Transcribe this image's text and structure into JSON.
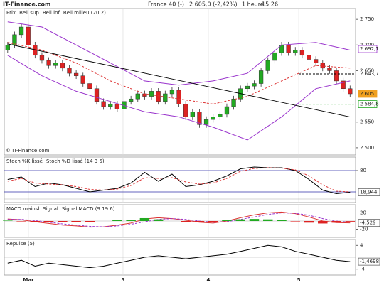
{
  "header": {
    "site": "IT-Finance.com",
    "instrument": "France 40 (-)",
    "quote": "2 605,0 (-2,42%)",
    "period": "1 heure",
    "time": "15:26"
  },
  "chart_data": [
    {
      "type": "candlestick",
      "legend_label": "Prix",
      "copyright": "© IT-Finance.com",
      "xlim": [
        -0.5,
        50.8
      ],
      "xticks": [
        {
          "value": 3.03,
          "label": "Mar"
        },
        {
          "value": 16.84,
          "label": "3"
        },
        {
          "value": 29.3,
          "label": "4"
        },
        {
          "value": 42.5,
          "label": "5"
        }
      ],
      "ylim": [
        2486,
        2771
      ],
      "yticks": [
        {
          "value": 2750,
          "label": "2 750"
        },
        {
          "value": 2700,
          "label": "2 700"
        },
        {
          "value": 2650,
          "label": "2 650"
        },
        {
          "value": 2550,
          "label": "2 550"
        },
        {
          "value": 2500,
          "label": "2 500"
        }
      ],
      "up_color": "#22aa22",
      "down_color": "#dd2222",
      "open": [
        2690,
        2700,
        2720,
        2735,
        2700,
        2680,
        2670,
        2660,
        2665,
        2655,
        2645,
        2640,
        2625,
        2615,
        2590,
        2580,
        2585,
        2575,
        2590,
        2595,
        2605,
        2600,
        2610,
        2590,
        2605,
        2612,
        2585,
        2560,
        2570,
        2545,
        2555,
        2560,
        2565,
        2580,
        2595,
        2615,
        2620,
        2625,
        2650,
        2670,
        2685,
        2700,
        2685,
        2690,
        2680,
        2672,
        2665,
        2655,
        2650,
        2630,
        2615
      ],
      "high": [
        2706,
        2726,
        2741,
        2741,
        2706,
        2686,
        2676,
        2671,
        2671,
        2661,
        2651,
        2646,
        2631,
        2621,
        2596,
        2591,
        2591,
        2596,
        2601,
        2611,
        2611,
        2616,
        2616,
        2611,
        2618,
        2618,
        2591,
        2576,
        2576,
        2561,
        2566,
        2571,
        2586,
        2601,
        2621,
        2626,
        2631,
        2656,
        2676,
        2691,
        2706,
        2706,
        2696,
        2696,
        2686,
        2678,
        2671,
        2661,
        2656,
        2636,
        2621
      ],
      "low": [
        2684,
        2694,
        2714,
        2694,
        2674,
        2664,
        2654,
        2654,
        2649,
        2639,
        2634,
        2619,
        2609,
        2584,
        2574,
        2574,
        2569,
        2569,
        2584,
        2589,
        2594,
        2594,
        2584,
        2584,
        2599,
        2579,
        2554,
        2554,
        2539,
        2539,
        2549,
        2554,
        2559,
        2574,
        2589,
        2609,
        2614,
        2619,
        2644,
        2664,
        2679,
        2679,
        2679,
        2674,
        2666,
        2659,
        2649,
        2644,
        2624,
        2609,
        2599
      ],
      "close": [
        2700,
        2720,
        2735,
        2700,
        2680,
        2670,
        2660,
        2665,
        2655,
        2645,
        2640,
        2625,
        2615,
        2590,
        2580,
        2585,
        2575,
        2590,
        2595,
        2605,
        2600,
        2610,
        2590,
        2605,
        2612,
        2585,
        2560,
        2570,
        2545,
        2555,
        2560,
        2565,
        2580,
        2595,
        2615,
        2620,
        2625,
        2650,
        2670,
        2685,
        2700,
        2685,
        2690,
        2680,
        2672,
        2665,
        2655,
        2650,
        2630,
        2615,
        2605
      ],
      "series": [
        {
          "name": "Bell sup",
          "color": "#9933cc",
          "x": [
            0,
            5,
            10,
            15,
            20,
            25,
            30,
            35,
            40,
            45,
            50
          ],
          "values": [
            2745,
            2735,
            2700,
            2665,
            2630,
            2622,
            2630,
            2645,
            2700,
            2705,
            2690
          ]
        },
        {
          "name": "Bell inf",
          "color": "#9933cc",
          "x": [
            0,
            5,
            10,
            15,
            20,
            25,
            30,
            35,
            40,
            45,
            50
          ],
          "values": [
            2680,
            2640,
            2610,
            2590,
            2570,
            2560,
            2540,
            2515,
            2560,
            2615,
            2630
          ]
        },
        {
          "name": "Bell milieu (20 2)",
          "color": "#dd3333",
          "dash": true,
          "x": [
            0,
            5,
            10,
            15,
            20,
            25,
            30,
            35,
            40,
            45,
            50
          ],
          "values": [
            2705,
            2690,
            2665,
            2630,
            2605,
            2595,
            2585,
            2600,
            2630,
            2660,
            2655
          ]
        }
      ],
      "trendline": {
        "color": "#000000",
        "x": [
          0,
          50
        ],
        "values": [
          2702,
          2560
        ]
      },
      "price_labels": [
        {
          "value": 2692.1,
          "label": "2 692,1",
          "color": "#9933cc",
          "box": "outline",
          "line": false
        },
        {
          "value": 2643.7,
          "label": "2 643,7",
          "color": "#000000",
          "box": "none",
          "line": true
        },
        {
          "value": 2605,
          "label": "2 605",
          "color": "#f0a020",
          "box": "fill",
          "line": false
        },
        {
          "value": 2584.8,
          "label": "2 584,8",
          "color": "#22aa22",
          "box": "outline",
          "line": true
        }
      ]
    },
    {
      "type": "line",
      "ylim": [
        -10,
        118
      ],
      "yticks": [
        80
      ],
      "levels": [
        80,
        20
      ],
      "x": [
        0,
        2,
        4,
        6,
        8,
        10,
        12,
        14,
        16,
        18,
        20,
        22,
        24,
        26,
        28,
        30,
        32,
        34,
        36,
        38,
        40,
        42,
        44,
        46,
        48,
        50
      ],
      "series": [
        {
          "name": "Stoch %K lissé",
          "color": "#000000",
          "values": [
            55,
            62,
            35,
            45,
            40,
            30,
            20,
            25,
            30,
            45,
            75,
            50,
            70,
            35,
            40,
            50,
            65,
            85,
            90,
            88,
            88,
            80,
            55,
            25,
            15,
            19
          ]
        },
        {
          "name": "Stoch %D lissé (14 3 5)",
          "color": "#dd3333",
          "dash": true,
          "values": [
            50,
            58,
            45,
            42,
            40,
            35,
            27,
            25,
            28,
            38,
            60,
            58,
            60,
            48,
            42,
            45,
            58,
            78,
            86,
            88,
            87,
            82,
            65,
            40,
            22,
            20
          ]
        }
      ],
      "last_label": {
        "value": 18.944,
        "label": "18,944"
      }
    },
    {
      "type": "line",
      "ylim": [
        -40,
        40
      ],
      "yticks": [
        20,
        -20
      ],
      "x": [
        0,
        2,
        4,
        6,
        8,
        10,
        12,
        14,
        16,
        18,
        20,
        22,
        24,
        26,
        28,
        30,
        32,
        34,
        36,
        38,
        40,
        42,
        44,
        46,
        48,
        50
      ],
      "series": [
        {
          "name": "MACD mainsl",
          "color": "#dd3333",
          "values": [
            5,
            3,
            -2,
            -6,
            -10,
            -12,
            -15,
            -14,
            -10,
            -5,
            5,
            8,
            6,
            2,
            -3,
            -5,
            0,
            8,
            15,
            20,
            22,
            18,
            10,
            0,
            -4,
            -4.5
          ]
        },
        {
          "name": "Signal",
          "color": "#9933cc",
          "dash": true,
          "values": [
            4,
            4,
            1,
            -3,
            -7,
            -10,
            -13,
            -14,
            -12,
            -8,
            -2,
            4,
            6,
            4,
            0,
            -3,
            -2,
            4,
            10,
            16,
            20,
            19,
            14,
            6,
            0,
            -3
          ]
        },
        {
          "name": "Signal MACD (9 19 6)",
          "kind": "histogram",
          "color": "#22aa22",
          "neg_color": "#dd2222",
          "values": [
            1,
            -1,
            -3,
            -3,
            -3,
            -2,
            -2,
            0,
            2,
            3,
            7,
            4,
            0,
            -2,
            -3,
            -2,
            2,
            4,
            5,
            4,
            2,
            -1,
            -4,
            -6,
            -4,
            -1.5
          ]
        }
      ],
      "last_label": {
        "value": -4.529,
        "label": "-4,529"
      }
    },
    {
      "type": "line",
      "ylim": [
        -6,
        6
      ],
      "yticks": [
        4,
        -4
      ],
      "x": [
        0,
        2,
        4,
        6,
        8,
        10,
        12,
        14,
        16,
        18,
        20,
        22,
        24,
        26,
        28,
        30,
        32,
        34,
        36,
        38,
        40,
        42,
        44,
        46,
        48,
        50
      ],
      "series": [
        {
          "name": "Repulse (5)",
          "color": "#000000",
          "values": [
            -2,
            -1,
            -3,
            -2,
            -2.5,
            -3,
            -3.5,
            -3,
            -2,
            -1,
            0,
            0.5,
            0,
            -0.5,
            0,
            0.5,
            1,
            2,
            3,
            4,
            3.5,
            2,
            1,
            0,
            -1,
            -1.4698
          ]
        }
      ],
      "last_label": {
        "value": -1.4698,
        "label": "-1,4698"
      }
    }
  ]
}
